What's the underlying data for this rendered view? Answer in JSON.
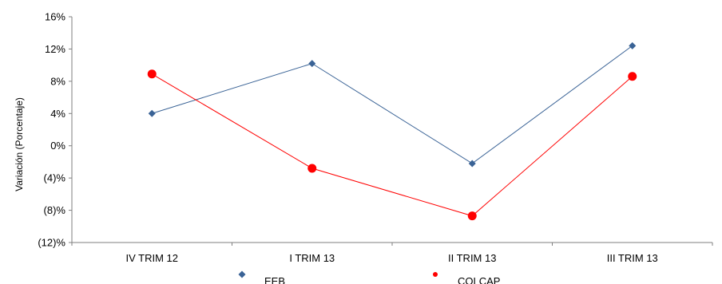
{
  "chart_data": {
    "type": "line",
    "title": "",
    "xlabel": "",
    "ylabel": "Variación (Porcentaje)",
    "categories": [
      "IV TRIM 12",
      "I TRIM 13",
      "II TRIM 13",
      "III TRIM 13"
    ],
    "yticks": [
      {
        "value": 16,
        "label": "16%"
      },
      {
        "value": 12,
        "label": "12%"
      },
      {
        "value": 8,
        "label": "8%"
      },
      {
        "value": 4,
        "label": "4%"
      },
      {
        "value": 0,
        "label": "0%"
      },
      {
        "value": -4,
        "label": "(4)%"
      },
      {
        "value": -8,
        "label": "(8)%"
      },
      {
        "value": -12,
        "label": "(12)%"
      }
    ],
    "ylim": [
      -12,
      16
    ],
    "grid": false,
    "legend_position": "bottom",
    "series": [
      {
        "name": "EEB",
        "values": [
          4.0,
          10.2,
          -2.2,
          12.4
        ],
        "color": "#3a6396",
        "marker": "diamond"
      },
      {
        "name": "COLCAP",
        "values": [
          8.9,
          -2.8,
          -8.7,
          8.6
        ],
        "color": "#ff0000",
        "marker": "circle"
      }
    ]
  }
}
